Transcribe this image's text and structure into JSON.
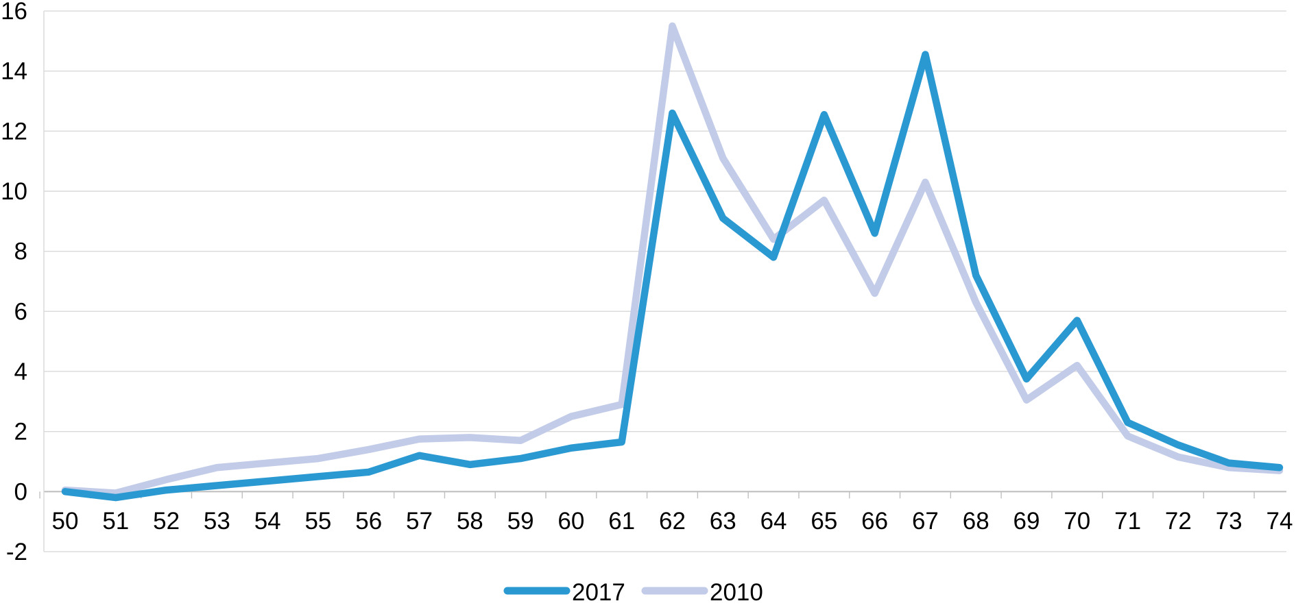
{
  "chart_data": {
    "type": "line",
    "title": "",
    "xlabel": "",
    "ylabel": "",
    "categories": [
      "50",
      "51",
      "52",
      "53",
      "54",
      "55",
      "56",
      "57",
      "58",
      "59",
      "60",
      "61",
      "62",
      "63",
      "64",
      "65",
      "66",
      "67",
      "68",
      "69",
      "70",
      "71",
      "72",
      "73",
      "74"
    ],
    "series": [
      {
        "name": "2017",
        "color": "#2B99D1",
        "values": [
          0.0,
          -0.2,
          0.05,
          0.2,
          0.35,
          0.5,
          0.65,
          1.2,
          0.9,
          1.1,
          1.45,
          1.65,
          12.6,
          9.1,
          7.8,
          12.55,
          8.6,
          14.55,
          7.2,
          3.75,
          5.7,
          2.3,
          1.55,
          0.95,
          0.8
        ]
      },
      {
        "name": "2010",
        "color": "#C2CCE9",
        "values": [
          0.05,
          -0.05,
          0.4,
          0.8,
          0.95,
          1.1,
          1.4,
          1.75,
          1.8,
          1.7,
          2.5,
          2.9,
          15.5,
          11.1,
          8.4,
          9.7,
          6.6,
          10.3,
          6.3,
          3.05,
          4.2,
          1.85,
          1.15,
          0.8,
          0.7
        ]
      }
    ],
    "ylim": [
      -2,
      16
    ],
    "yticks": [
      16,
      14,
      12,
      10,
      8,
      6,
      4,
      2,
      0,
      -2
    ],
    "grid": true,
    "legend_position": "bottom-center"
  },
  "colors": {
    "background": "#FFFFFF",
    "gridline": "#D9D9D9",
    "zero_axis": "#C0C0C0",
    "tick_mark": "#BFBFBF",
    "plot_border": "#D9D9D9",
    "text": "#000000"
  }
}
